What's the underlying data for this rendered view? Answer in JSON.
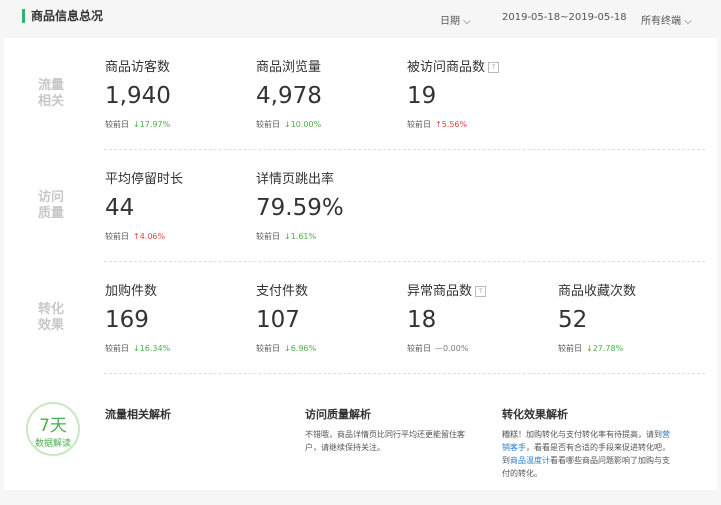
{
  "header": {
    "title": "商品信息总况",
    "date_label": "日期",
    "date_range": "2019-05-18~2019-05-18",
    "terminal": "所有终端"
  },
  "compare_label": "较前日",
  "sections": [
    {
      "label": "流量相关",
      "metrics": [
        {
          "name": "商品访客数",
          "value": "1,940",
          "change": "17.97%",
          "dir": "down"
        },
        {
          "name": "商品浏览量",
          "value": "4,978",
          "change": "10.00%",
          "dir": "down"
        },
        {
          "name": "被访问商品数",
          "value": "19",
          "change": "5.56%",
          "dir": "up",
          "help": true
        }
      ]
    },
    {
      "label": "访问质量",
      "metrics": [
        {
          "name": "平均停留时长",
          "value": "44",
          "change": "4.06%",
          "dir": "up"
        },
        {
          "name": "详情页跳出率",
          "value": "79.59%",
          "change": "1.61%",
          "dir": "down"
        }
      ]
    },
    {
      "label": "转化效果",
      "metrics": [
        {
          "name": "加购件数",
          "value": "169",
          "change": "16.34%",
          "dir": "down"
        },
        {
          "name": "支付件数",
          "value": "107",
          "change": "6.96%",
          "dir": "down"
        },
        {
          "name": "异常商品数",
          "value": "18",
          "change": "0.00%",
          "dir": "flat",
          "help": true
        },
        {
          "name": "商品收藏次数",
          "value": "52",
          "change": "27.78%",
          "dir": "down"
        }
      ]
    }
  ],
  "badge": {
    "days": "7天",
    "caption": "数据解读"
  },
  "analysis": [
    {
      "title": "流量相关解析",
      "segments": []
    },
    {
      "title": "访问质量解析",
      "segments": [
        {
          "text": "不错哦，商品详情页比同行平均还更能留住客户，请继续保持关注。"
        }
      ]
    },
    {
      "title": "转化效果解析",
      "segments": [
        {
          "text": "糟糕！加购转化与支付转化率有待提高，请到"
        },
        {
          "text": "营销客手",
          "link": true
        },
        {
          "text": "，看看是否有合适的手段来促进转化吧，到"
        },
        {
          "text": "商品温度计",
          "link": true
        },
        {
          "text": "看看哪些商品问题影响了加购与支付的转化。"
        }
      ]
    }
  ]
}
